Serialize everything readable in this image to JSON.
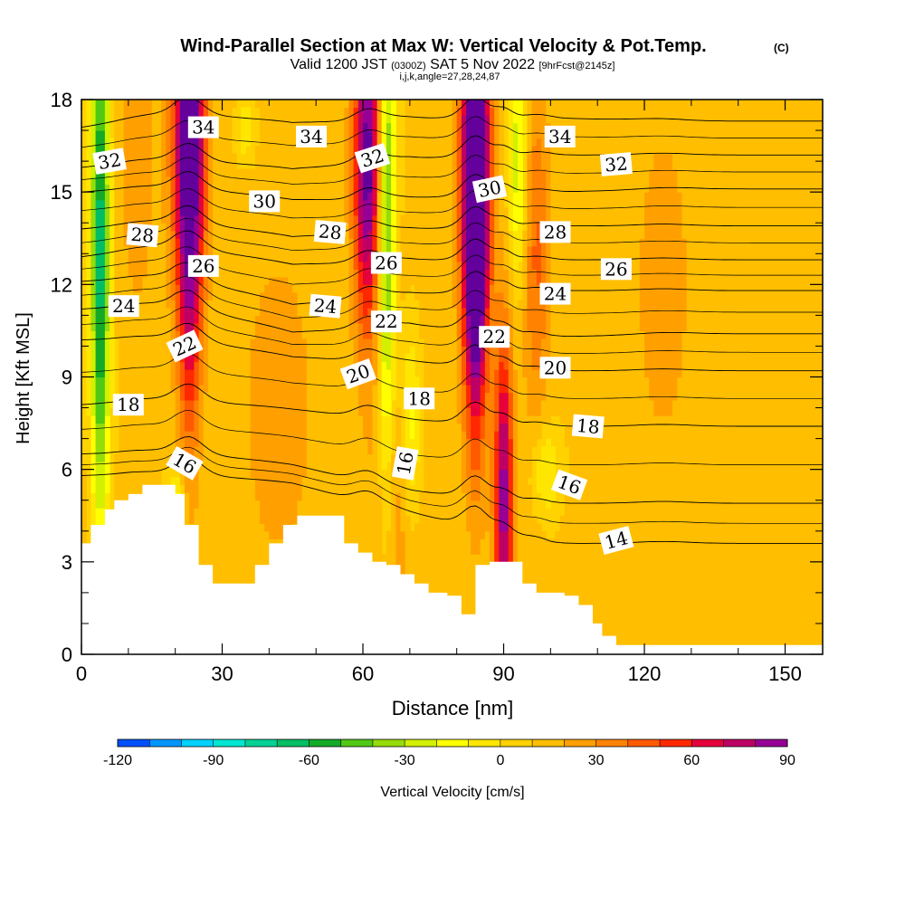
{
  "header": {
    "title": "Wind-Parallel Section at Max W: Vertical Velocity & Pot.Temp.",
    "title_mark": "(C)",
    "valid_prefix": "Valid 1200 JST",
    "valid_utc": "(0300Z)",
    "valid_date": "SAT 5 Nov 2022",
    "forecast": "[9hrFcst@2145z]",
    "indices": "i,j,k,angle=27,28,24,87"
  },
  "chart_data": {
    "type": "heatmap",
    "xlabel": "Distance [nm]",
    "ylabel": "Height [Kft MSL]",
    "xlim": [
      0,
      158
    ],
    "ylim": [
      0,
      18
    ],
    "x_ticks": [
      "0",
      "30",
      "60",
      "90",
      "120",
      "150"
    ],
    "y_ticks": [
      "0",
      "3",
      "6",
      "9",
      "12",
      "15",
      "18"
    ],
    "grid": false,
    "colorbar": {
      "label": "Vertical Velocity [cm/s]",
      "ticks": [
        "-120",
        "-90",
        "-60",
        "-30",
        "0",
        "30",
        "60",
        "90"
      ],
      "min": -120,
      "max": 90,
      "step": 10,
      "colors": [
        "#0000ff",
        "#0050ff",
        "#0096ff",
        "#00d2ff",
        "#00e6d2",
        "#00d296",
        "#00be64",
        "#14aa28",
        "#50c814",
        "#96dc0a",
        "#d2f000",
        "#ffff00",
        "#ffe600",
        "#ffd200",
        "#ffbe00",
        "#ffa000",
        "#ff8200",
        "#ff5a00",
        "#ff2800",
        "#e6003c",
        "#be0064",
        "#960096",
        "#64009b"
      ]
    },
    "terrain_kft": [
      [
        0,
        3.6
      ],
      [
        2,
        3.6
      ],
      [
        2,
        4.2
      ],
      [
        5,
        4.2
      ],
      [
        5,
        4.7
      ],
      [
        7,
        4.7
      ],
      [
        7,
        5.0
      ],
      [
        10,
        5.0
      ],
      [
        10,
        5.2
      ],
      [
        13,
        5.2
      ],
      [
        13,
        5.5
      ],
      [
        20,
        5.5
      ],
      [
        20,
        5.2
      ],
      [
        22,
        5.2
      ],
      [
        22,
        4.2
      ],
      [
        25,
        4.2
      ],
      [
        25,
        2.9
      ],
      [
        28,
        2.9
      ],
      [
        28,
        2.3
      ],
      [
        37,
        2.3
      ],
      [
        37,
        2.9
      ],
      [
        40,
        2.9
      ],
      [
        40,
        3.6
      ],
      [
        43,
        3.6
      ],
      [
        43,
        4.2
      ],
      [
        46,
        4.2
      ],
      [
        46,
        4.5
      ],
      [
        56,
        4.5
      ],
      [
        56,
        3.6
      ],
      [
        59,
        3.6
      ],
      [
        59,
        3.3
      ],
      [
        62,
        3.3
      ],
      [
        62,
        3.0
      ],
      [
        65,
        3.0
      ],
      [
        65,
        2.9
      ],
      [
        68,
        2.9
      ],
      [
        68,
        2.6
      ],
      [
        71,
        2.6
      ],
      [
        71,
        2.3
      ],
      [
        74,
        2.3
      ],
      [
        74,
        2.0
      ],
      [
        78,
        2.0
      ],
      [
        78,
        1.9
      ],
      [
        81,
        1.9
      ],
      [
        81,
        1.3
      ],
      [
        84,
        1.3
      ],
      [
        84,
        2.9
      ],
      [
        87,
        2.9
      ],
      [
        87,
        3.0
      ],
      [
        94,
        3.0
      ],
      [
        94,
        2.3
      ],
      [
        97,
        2.3
      ],
      [
        97,
        2.0
      ],
      [
        103,
        2.0
      ],
      [
        103,
        1.9
      ],
      [
        106,
        1.9
      ],
      [
        106,
        1.6
      ],
      [
        109,
        1.6
      ],
      [
        109,
        1.0
      ],
      [
        111,
        1.0
      ],
      [
        111,
        0.6
      ],
      [
        114,
        0.6
      ],
      [
        114,
        0.3
      ],
      [
        120,
        0.3
      ],
      [
        120,
        0.3
      ],
      [
        158,
        0.3
      ]
    ],
    "updrafts": [
      [
        23,
        17,
        3.5,
        90
      ],
      [
        23,
        11,
        2.5,
        40
      ],
      [
        61,
        16,
        3,
        85
      ],
      [
        84,
        16,
        3,
        115
      ],
      [
        84,
        11,
        2.5,
        55
      ],
      [
        90,
        5,
        2,
        75
      ],
      [
        97,
        13,
        3,
        30
      ],
      [
        124,
        12,
        6,
        15
      ],
      [
        42,
        8,
        8,
        15
      ],
      [
        66,
        5,
        4,
        20
      ],
      [
        12,
        16,
        4,
        15
      ]
    ],
    "downdrafts": [
      [
        4,
        13,
        2,
        -80,
        9
      ],
      [
        35,
        17,
        2,
        -20,
        1
      ],
      [
        65,
        14,
        2,
        -60,
        10
      ],
      [
        70,
        7.5,
        2,
        -30,
        3
      ],
      [
        93,
        16,
        2,
        -40,
        4
      ],
      [
        99,
        6,
        3,
        -25,
        1.5
      ],
      [
        20,
        5,
        2,
        -30,
        1
      ]
    ],
    "isentropes_kft_at_x": [
      0,
      20,
      45,
      70,
      100,
      130,
      158
    ],
    "isentropes": [
      {
        "theta": 14,
        "h": [
          5.8,
          5.9,
          5.5,
          4.6,
          3.6,
          3.6,
          3.6
        ]
      },
      {
        "theta": 16,
        "h": [
          6.5,
          6.6,
          6.1,
          5.3,
          4.9,
          4.9,
          4.9
        ]
      },
      {
        "theta": 18,
        "h": [
          8.1,
          8.3,
          7.9,
          7.6,
          7.4,
          7.4,
          7.4
        ]
      },
      {
        "theta": 20,
        "h": [
          10.2,
          10.3,
          9.6,
          9.5,
          9.2,
          9.2,
          9.2
        ]
      },
      {
        "theta": 22,
        "h": [
          11.2,
          11.4,
          10.4,
          10.7,
          10.3,
          10.4,
          10.4
        ]
      },
      {
        "theta": 24,
        "h": [
          12.1,
          12.3,
          11.3,
          11.7,
          11.8,
          11.8,
          11.8
        ]
      },
      {
        "theta": 26,
        "h": [
          12.9,
          13.3,
          12.6,
          12.8,
          12.8,
          12.8,
          12.8
        ]
      },
      {
        "theta": 28,
        "h": [
          13.8,
          14.1,
          13.5,
          13.8,
          13.9,
          13.9,
          13.9
        ]
      },
      {
        "theta": 30,
        "h": [
          15.0,
          15.2,
          14.7,
          14.8,
          15.0,
          15.1,
          15.1
        ]
      },
      {
        "theta": 32,
        "h": [
          15.8,
          16.1,
          15.7,
          16.1,
          16.2,
          16.2,
          16.2
        ]
      },
      {
        "theta": 34,
        "h": [
          17.1,
          17.6,
          17.2,
          17.4,
          17.4,
          17.3,
          17.3
        ]
      }
    ],
    "contour_labels": [
      {
        "text": "34",
        "x": 26,
        "y": 17.1,
        "rot": 0
      },
      {
        "text": "34",
        "x": 49,
        "y": 16.8,
        "rot": 0
      },
      {
        "text": "34",
        "x": 102,
        "y": 16.8,
        "rot": 0
      },
      {
        "text": "32",
        "x": 6,
        "y": 16.0,
        "rot": -10
      },
      {
        "text": "32",
        "x": 62,
        "y": 16.1,
        "rot": -18
      },
      {
        "text": "32",
        "x": 114,
        "y": 15.9,
        "rot": -5
      },
      {
        "text": "30",
        "x": 39,
        "y": 14.7,
        "rot": 0
      },
      {
        "text": "30",
        "x": 87,
        "y": 15.1,
        "rot": -12
      },
      {
        "text": "28",
        "x": 13,
        "y": 13.6,
        "rot": 5
      },
      {
        "text": "28",
        "x": 53,
        "y": 13.7,
        "rot": 5
      },
      {
        "text": "28",
        "x": 101,
        "y": 13.7,
        "rot": 0
      },
      {
        "text": "26",
        "x": 26,
        "y": 12.6,
        "rot": 0
      },
      {
        "text": "26",
        "x": 65,
        "y": 12.7,
        "rot": 0
      },
      {
        "text": "26",
        "x": 114,
        "y": 12.5,
        "rot": 0
      },
      {
        "text": "24",
        "x": 9,
        "y": 11.3,
        "rot": 0
      },
      {
        "text": "24",
        "x": 52,
        "y": 11.3,
        "rot": 5
      },
      {
        "text": "24",
        "x": 101,
        "y": 11.7,
        "rot": 0
      },
      {
        "text": "22",
        "x": 22,
        "y": 10.0,
        "rot": -25
      },
      {
        "text": "22",
        "x": 65,
        "y": 10.8,
        "rot": 0
      },
      {
        "text": "22",
        "x": 88,
        "y": 10.3,
        "rot": 0
      },
      {
        "text": "20",
        "x": 59,
        "y": 9.1,
        "rot": -20
      },
      {
        "text": "20",
        "x": 101,
        "y": 9.3,
        "rot": 0
      },
      {
        "text": "18",
        "x": 10,
        "y": 8.1,
        "rot": 0
      },
      {
        "text": "18",
        "x": 72,
        "y": 8.3,
        "rot": 0
      },
      {
        "text": "18",
        "x": 108,
        "y": 7.4,
        "rot": 5
      },
      {
        "text": "16",
        "x": 22,
        "y": 6.2,
        "rot": 30
      },
      {
        "text": "16",
        "x": 69,
        "y": 6.2,
        "rot": -80
      },
      {
        "text": "16",
        "x": 104,
        "y": 5.5,
        "rot": 20
      },
      {
        "text": "14",
        "x": 114,
        "y": 3.7,
        "rot": -15
      }
    ]
  }
}
